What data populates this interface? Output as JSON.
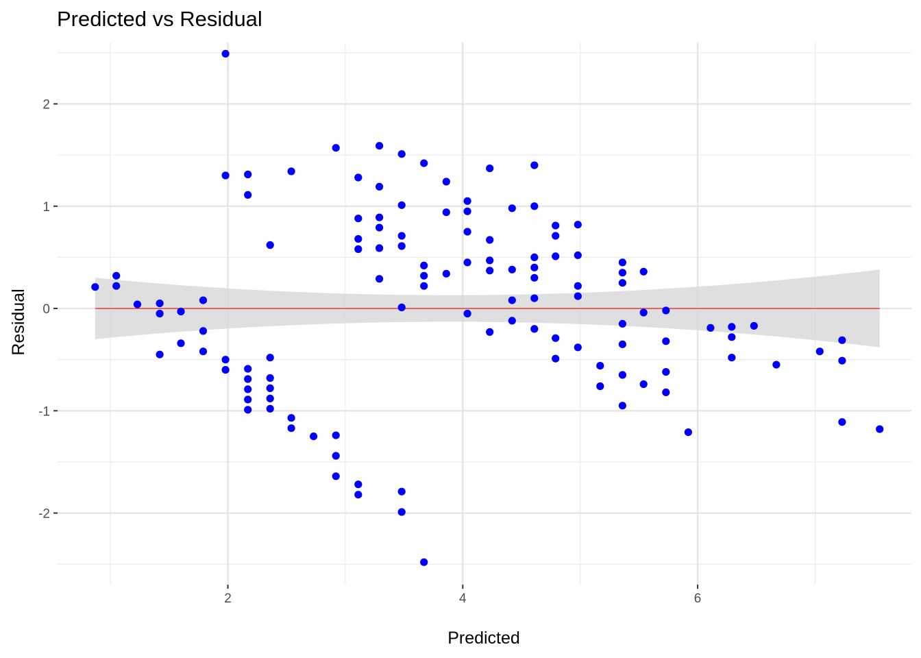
{
  "chart_data": {
    "type": "scatter",
    "title": "Predicted vs Residual",
    "xlabel": "Predicted",
    "ylabel": "Residual",
    "xlim": [
      0.55,
      7.82
    ],
    "ylim": [
      -2.7,
      2.6
    ],
    "x_ticks": [
      2,
      4,
      6
    ],
    "x_tick_labels": [
      "2",
      "4",
      "6"
    ],
    "y_ticks": [
      -2,
      -1,
      0,
      1,
      2
    ],
    "y_tick_labels": [
      "-2",
      "-1",
      "0",
      "1",
      "2"
    ],
    "grid": true,
    "point_color": "#0000ff",
    "reference_line": {
      "y": 0,
      "color": "#ff0000"
    },
    "confidence_band": {
      "color": "#d9d9d9",
      "x": [
        0.87,
        3.8,
        7.55
      ],
      "lower": [
        -0.3,
        -0.13,
        -0.38
      ],
      "upper": [
        0.3,
        0.13,
        0.38
      ]
    },
    "points": [
      [
        0.87,
        0.21
      ],
      [
        1.05,
        0.32
      ],
      [
        1.05,
        0.22
      ],
      [
        1.23,
        0.04
      ],
      [
        1.42,
        0.05
      ],
      [
        1.42,
        -0.05
      ],
      [
        1.42,
        -0.45
      ],
      [
        1.6,
        -0.03
      ],
      [
        1.6,
        -0.34
      ],
      [
        1.79,
        0.08
      ],
      [
        1.79,
        -0.22
      ],
      [
        1.79,
        -0.42
      ],
      [
        1.98,
        2.49
      ],
      [
        1.98,
        1.3
      ],
      [
        1.98,
        -0.5
      ],
      [
        1.98,
        -0.6
      ],
      [
        2.17,
        1.31
      ],
      [
        2.17,
        1.11
      ],
      [
        2.17,
        -0.59
      ],
      [
        2.17,
        -0.69
      ],
      [
        2.17,
        -0.79
      ],
      [
        2.17,
        -0.89
      ],
      [
        2.17,
        -0.99
      ],
      [
        2.36,
        0.62
      ],
      [
        2.36,
        -0.48
      ],
      [
        2.36,
        -0.68
      ],
      [
        2.36,
        -0.78
      ],
      [
        2.36,
        -0.88
      ],
      [
        2.36,
        -0.98
      ],
      [
        2.54,
        1.34
      ],
      [
        2.54,
        -1.07
      ],
      [
        2.54,
        -1.17
      ],
      [
        2.73,
        -1.25
      ],
      [
        2.92,
        1.57
      ],
      [
        2.92,
        -1.24
      ],
      [
        2.92,
        -1.44
      ],
      [
        2.92,
        -1.64
      ],
      [
        3.11,
        1.28
      ],
      [
        3.11,
        0.88
      ],
      [
        3.11,
        0.68
      ],
      [
        3.11,
        0.58
      ],
      [
        3.11,
        -1.72
      ],
      [
        3.11,
        -1.82
      ],
      [
        3.29,
        1.59
      ],
      [
        3.29,
        1.19
      ],
      [
        3.29,
        0.89
      ],
      [
        3.29,
        0.79
      ],
      [
        3.29,
        0.59
      ],
      [
        3.29,
        0.29
      ],
      [
        3.48,
        1.51
      ],
      [
        3.48,
        1.01
      ],
      [
        3.48,
        0.71
      ],
      [
        3.48,
        0.61
      ],
      [
        3.48,
        0.01
      ],
      [
        3.48,
        -1.79
      ],
      [
        3.48,
        -1.99
      ],
      [
        3.67,
        1.42
      ],
      [
        3.67,
        0.42
      ],
      [
        3.67,
        0.32
      ],
      [
        3.67,
        0.22
      ],
      [
        3.67,
        -2.48
      ],
      [
        3.86,
        1.24
      ],
      [
        3.86,
        0.94
      ],
      [
        3.86,
        0.34
      ],
      [
        4.04,
        1.05
      ],
      [
        4.04,
        0.95
      ],
      [
        4.04,
        0.75
      ],
      [
        4.04,
        0.45
      ],
      [
        4.04,
        -0.05
      ],
      [
        4.23,
        1.37
      ],
      [
        4.23,
        0.67
      ],
      [
        4.23,
        0.47
      ],
      [
        4.23,
        0.37
      ],
      [
        4.23,
        -0.23
      ],
      [
        4.42,
        0.98
      ],
      [
        4.42,
        0.38
      ],
      [
        4.42,
        0.08
      ],
      [
        4.42,
        -0.12
      ],
      [
        4.61,
        1.4
      ],
      [
        4.61,
        1.0
      ],
      [
        4.61,
        0.5
      ],
      [
        4.61,
        0.4
      ],
      [
        4.61,
        0.3
      ],
      [
        4.61,
        0.1
      ],
      [
        4.61,
        -0.2
      ],
      [
        4.79,
        0.81
      ],
      [
        4.79,
        0.71
      ],
      [
        4.79,
        0.51
      ],
      [
        4.79,
        -0.29
      ],
      [
        4.79,
        -0.49
      ],
      [
        4.98,
        0.82
      ],
      [
        4.98,
        0.52
      ],
      [
        4.98,
        0.22
      ],
      [
        4.98,
        0.12
      ],
      [
        4.98,
        -0.38
      ],
      [
        5.17,
        -0.56
      ],
      [
        5.17,
        -0.76
      ],
      [
        5.36,
        0.45
      ],
      [
        5.36,
        0.35
      ],
      [
        5.36,
        0.25
      ],
      [
        5.36,
        -0.15
      ],
      [
        5.36,
        -0.35
      ],
      [
        5.36,
        -0.65
      ],
      [
        5.36,
        -0.95
      ],
      [
        5.54,
        0.36
      ],
      [
        5.54,
        -0.04
      ],
      [
        5.54,
        -0.74
      ],
      [
        5.73,
        -0.02
      ],
      [
        5.73,
        -0.32
      ],
      [
        5.73,
        -0.62
      ],
      [
        5.73,
        -0.82
      ],
      [
        5.92,
        -1.21
      ],
      [
        6.11,
        -0.19
      ],
      [
        6.29,
        -0.18
      ],
      [
        6.29,
        -0.28
      ],
      [
        6.29,
        -0.48
      ],
      [
        6.48,
        -0.17
      ],
      [
        6.67,
        -0.55
      ],
      [
        7.04,
        -0.42
      ],
      [
        7.23,
        -0.31
      ],
      [
        7.23,
        -0.51
      ],
      [
        7.23,
        -1.11
      ],
      [
        7.55,
        -1.18
      ]
    ]
  }
}
